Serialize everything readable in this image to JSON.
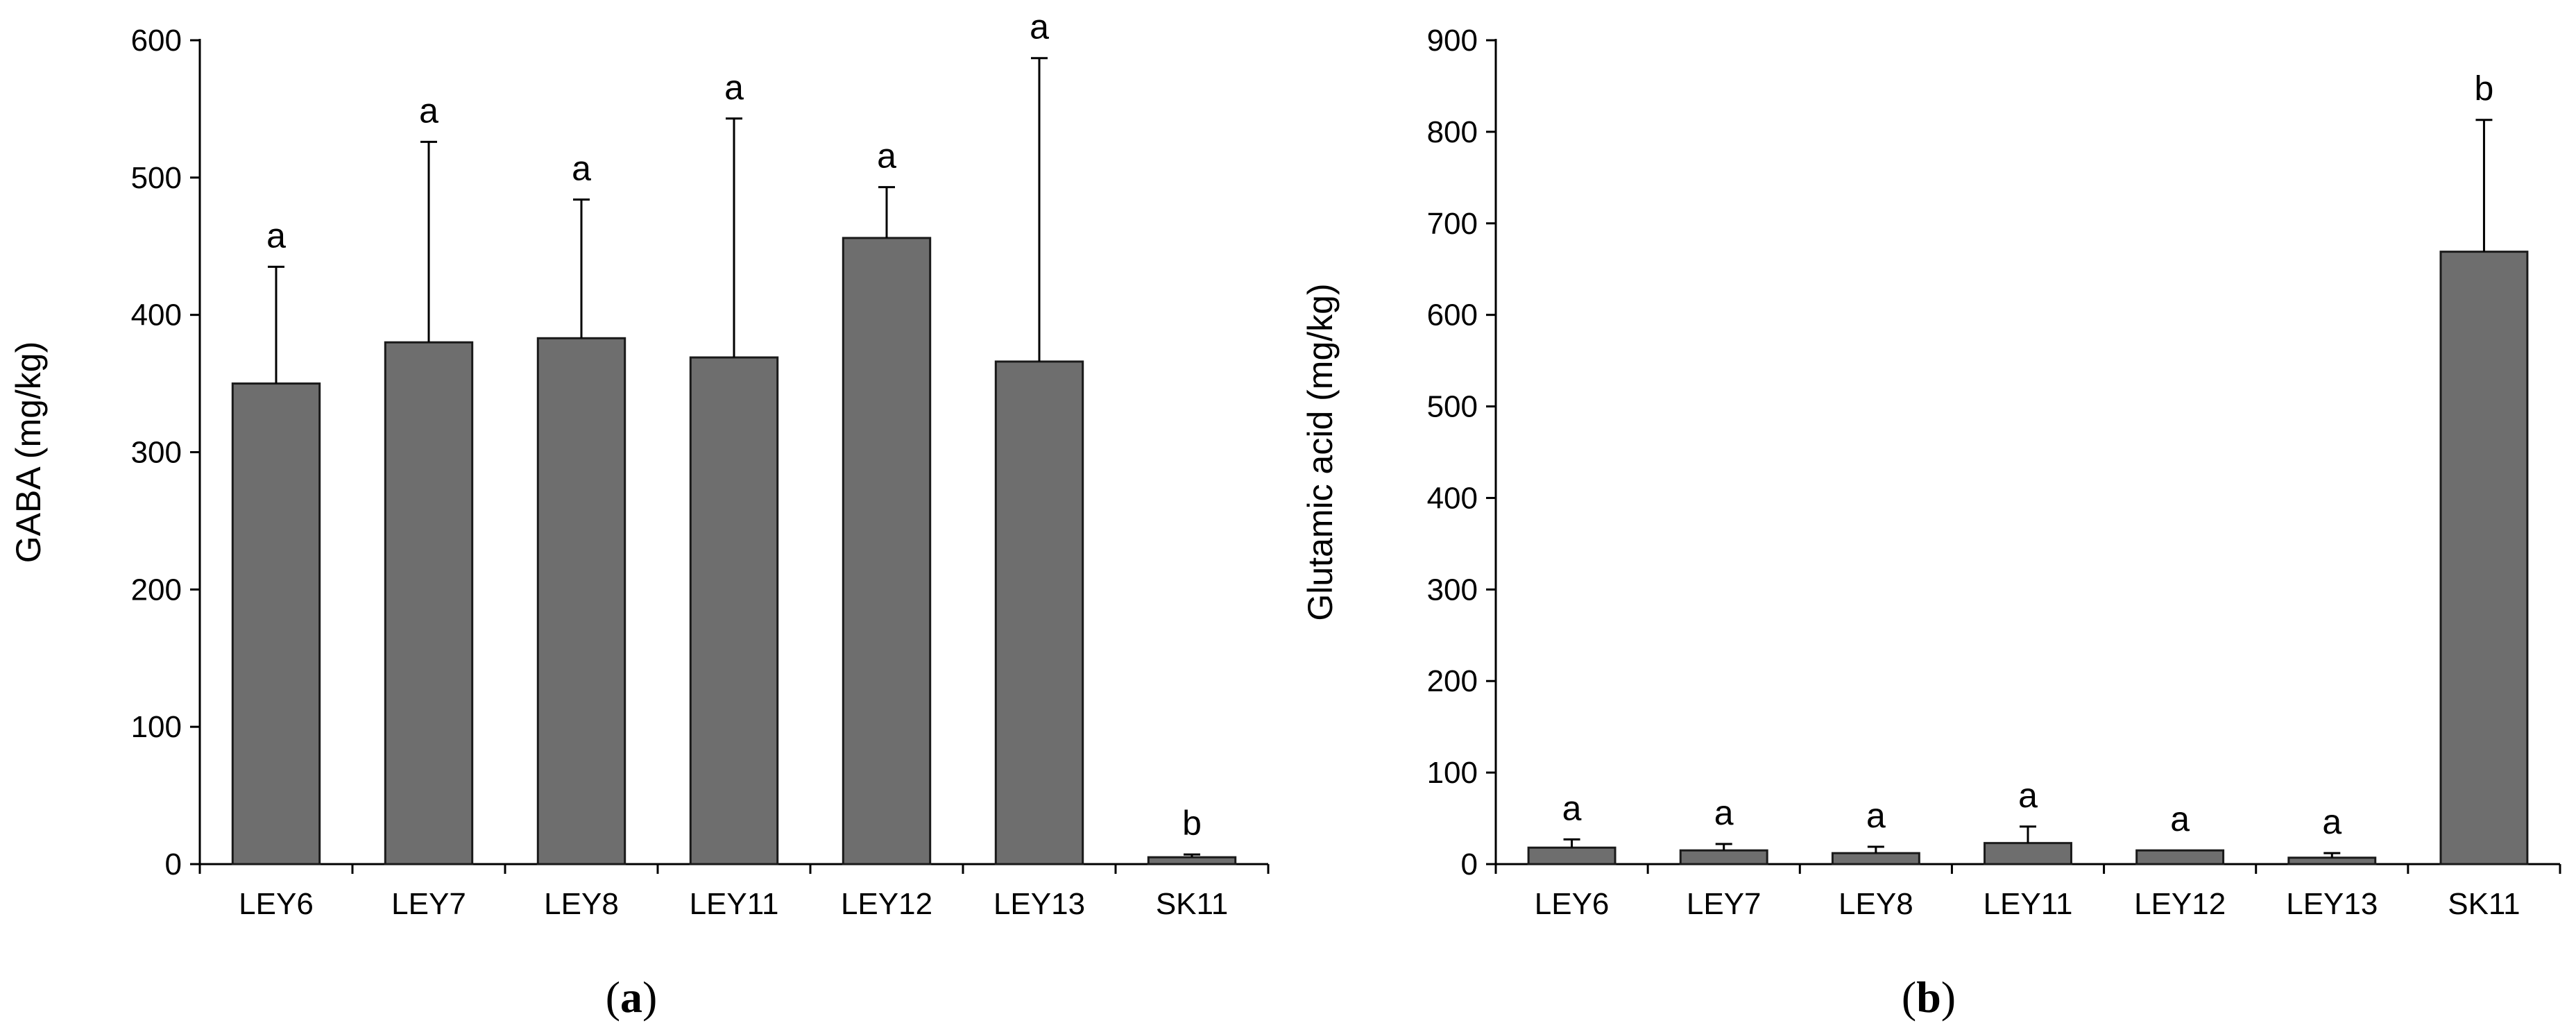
{
  "chart_data": [
    {
      "type": "bar",
      "panel_label": "a",
      "categories": [
        "LEY6",
        "LEY7",
        "LEY8",
        "LEY11",
        "LEY12",
        "LEY13",
        "SK11"
      ],
      "values": [
        350,
        380,
        383,
        369,
        456,
        366,
        5
      ],
      "errors": [
        85,
        146,
        101,
        174,
        37,
        221,
        2
      ],
      "significance": [
        "a",
        "a",
        "a",
        "a",
        "a",
        "a",
        "b"
      ],
      "ylabel": "GABA (mg/kg)",
      "xlabel": "",
      "ylim": [
        0,
        600
      ],
      "yticks": [
        0,
        100,
        200,
        300,
        400,
        500,
        600
      ],
      "bar_color": "#6e6e6e",
      "grid": false
    },
    {
      "type": "bar",
      "panel_label": "b",
      "categories": [
        "LEY6",
        "LEY7",
        "LEY8",
        "LEY11",
        "LEY12",
        "LEY13",
        "SK11"
      ],
      "values": [
        18,
        15,
        12,
        23,
        15,
        7,
        669
      ],
      "errors": [
        9,
        7,
        7,
        18,
        0,
        5,
        144
      ],
      "significance": [
        "a",
        "a",
        "a",
        "a",
        "a",
        "a",
        "b"
      ],
      "ylabel": "Glutamic acid (mg/kg)",
      "xlabel": "",
      "ylim": [
        0,
        900
      ],
      "yticks": [
        0,
        100,
        200,
        300,
        400,
        500,
        600,
        700,
        800,
        900
      ],
      "bar_color": "#6e6e6e",
      "grid": false
    }
  ]
}
